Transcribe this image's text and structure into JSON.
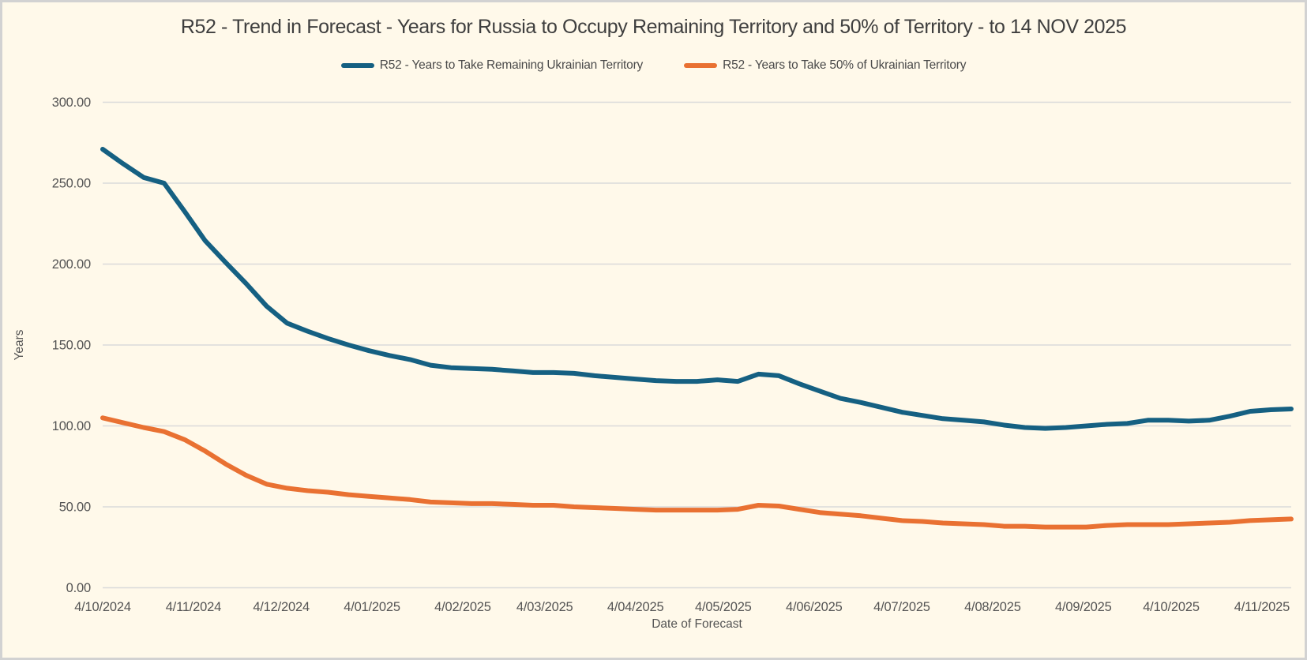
{
  "window": {
    "background_color": "#FFF9EA",
    "frame_border_color": "#D2D2D2",
    "gridline_color": "#DADADA"
  },
  "chart": {
    "title": "R52 - Trend in Forecast - Years for Russia to Occupy Remaining Territory and 50% of Territory - to 14 NOV 2025",
    "ylabel": "Years",
    "xlabel": "Date of Forecast"
  },
  "chart_data": {
    "type": "line",
    "title": "R52 - Trend in Forecast - Years for Russia to Occupy Remaining Territory and 50% of Territory - to 14 NOV 2025",
    "xlabel": "Date of Forecast",
    "ylabel": "Years",
    "ylim": [
      0,
      300
    ],
    "grid": "horizontal-only",
    "legend_position": "top",
    "y_ticks": [
      "0.00",
      "50.00",
      "100.00",
      "150.00",
      "200.00",
      "250.00",
      "300.00"
    ],
    "y_tick_values": [
      0,
      50,
      100,
      150,
      200,
      250,
      300
    ],
    "x_tick_labels": [
      "4/10/2024",
      "4/11/2024",
      "4/12/2024",
      "4/01/2025",
      "4/02/2025",
      "4/03/2025",
      "4/04/2025",
      "4/05/2025",
      "4/06/2025",
      "4/07/2025",
      "4/08/2025",
      "4/09/2025",
      "4/10/2025",
      "4/11/2025"
    ],
    "x_tick_days": [
      0,
      31,
      61,
      92,
      123,
      151,
      182,
      212,
      243,
      273,
      304,
      335,
      365,
      396
    ],
    "x_total_days": 406,
    "point_interval_days": 7,
    "x_start_date": "4/10/2024",
    "x_end_date": "14 NOV 2025",
    "series": [
      {
        "name": "R52 - Years to Take Remaining Ukrainian Territory",
        "color": "#156082",
        "values": [
          271,
          262,
          253.5,
          250,
          232.5,
          214.5,
          201,
          188,
          174,
          163.5,
          158.5,
          154,
          150,
          146.5,
          143.5,
          141,
          137.5,
          136,
          135.5,
          135,
          134,
          133,
          133,
          132.5,
          131,
          130,
          129,
          128,
          127.5,
          127.5,
          128.5,
          127.5,
          132,
          131,
          126,
          121.5,
          117,
          114.5,
          111.5,
          108.5,
          106.5,
          104.5,
          103.5,
          102.5,
          100.5,
          99,
          98.5,
          99,
          100,
          101,
          101.5,
          103.5,
          103.5,
          103,
          103.5,
          106,
          109,
          110,
          110.5
        ]
      },
      {
        "name": "R52 - Years to Take  50% of Ukrainian Territory",
        "color": "#E97132",
        "values": [
          105,
          102,
          99,
          96.5,
          91.5,
          84.5,
          76.5,
          69.5,
          64,
          61.5,
          60,
          59,
          57.5,
          56.5,
          55.5,
          54.5,
          53,
          52.5,
          52,
          52,
          51.5,
          51,
          51,
          50,
          49.5,
          49,
          48.5,
          48,
          48,
          48,
          48,
          48.5,
          51,
          50.5,
          48.5,
          46.5,
          45.5,
          44.5,
          43,
          41.5,
          41,
          40,
          39.5,
          39,
          38,
          38,
          37.5,
          37.5,
          37.5,
          38.5,
          39,
          39,
          39,
          39.5,
          40,
          40.5,
          41.5,
          42,
          42.5
        ]
      }
    ]
  }
}
